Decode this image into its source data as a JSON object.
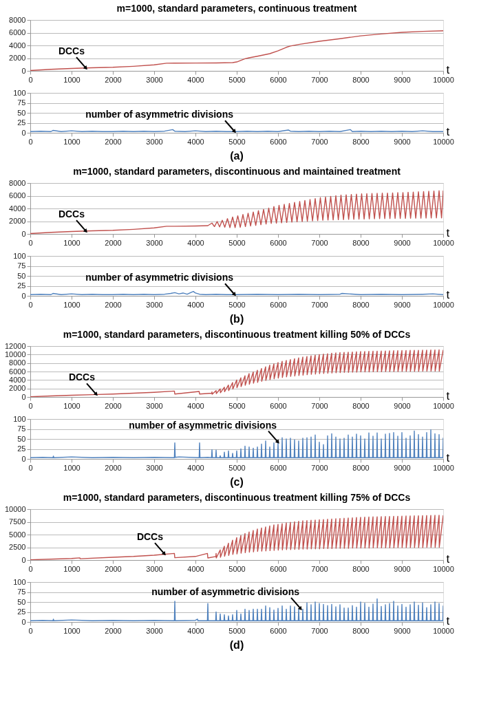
{
  "chart_data": [
    {
      "type": "line",
      "title": "m=1000, standard parameters, continuous treatment",
      "xlabel": "t",
      "xlim": [
        0,
        10000
      ],
      "xticks": [
        0,
        1000,
        2000,
        3000,
        4000,
        5000,
        6000,
        7000,
        8000,
        9000,
        10000
      ],
      "ylim": [
        0,
        8000
      ],
      "yticks": [
        0,
        2000,
        4000,
        6000,
        8000
      ],
      "grid": "y",
      "annotations": [
        {
          "text": "DCCs",
          "x": 1350,
          "y": 420
        }
      ],
      "series": [
        {
          "color": "#c0504d",
          "x": [
            0,
            500,
            1000,
            1500,
            2000,
            2500,
            3000,
            3300,
            3500,
            4000,
            4500,
            4900,
            5000,
            5200,
            5300,
            5500,
            5800,
            6000,
            6200,
            6300,
            6500,
            7000,
            7500,
            8000,
            8500,
            9000,
            9500,
            10000
          ],
          "values": [
            50,
            250,
            380,
            480,
            560,
            720,
            950,
            1200,
            1220,
            1230,
            1250,
            1300,
            1400,
            1900,
            2050,
            2300,
            2700,
            3150,
            3700,
            3900,
            4150,
            4650,
            5050,
            5500,
            5800,
            6050,
            6200,
            6300
          ]
        }
      ]
    },
    {
      "type": "line",
      "xlabel": "t",
      "xlim": [
        0,
        10000
      ],
      "xticks": [
        0,
        1000,
        2000,
        3000,
        4000,
        5000,
        6000,
        7000,
        8000,
        9000,
        10000
      ],
      "ylim": [
        0,
        100
      ],
      "yticks": [
        0,
        25,
        50,
        75,
        100
      ],
      "grid": "y",
      "annotations": [
        {
          "text": "number of asymmetric divisions",
          "x": 4950,
          "y": 3
        },
        "(a)"
      ],
      "series": [
        {
          "color": "#4f81bd",
          "x": [
            0,
            250,
            500,
            550,
            750,
            1000,
            1250,
            1500,
            1750,
            2000,
            2250,
            2500,
            2750,
            3000,
            3250,
            3450,
            3500,
            3750,
            4000,
            4250,
            4500,
            4750,
            5000,
            5250,
            5500,
            5750,
            6000,
            6250,
            6300,
            6500,
            6750,
            7000,
            7250,
            7500,
            7750,
            7800,
            8000,
            8250,
            8500,
            8750,
            9000,
            9250,
            9500,
            9750,
            10000
          ],
          "values": [
            3,
            4,
            3,
            6,
            3,
            5,
            3,
            4,
            3,
            3,
            4,
            3,
            4,
            3,
            4,
            8,
            4,
            3,
            5,
            3,
            4,
            3,
            3,
            4,
            3,
            4,
            3,
            7,
            4,
            3,
            4,
            3,
            4,
            3,
            8,
            3,
            4,
            3,
            4,
            3,
            4,
            3,
            5,
            3,
            3
          ]
        }
      ]
    },
    {
      "type": "line",
      "title": "m=1000, standard parameters, discontinuous and maintained treatment",
      "xlabel": "t",
      "xlim": [
        0,
        10000
      ],
      "xticks": [
        0,
        1000,
        2000,
        3000,
        4000,
        5000,
        6000,
        7000,
        8000,
        9000,
        10000
      ],
      "ylim": [
        0,
        8000
      ],
      "yticks": [
        0,
        2000,
        4000,
        6000,
        8000
      ],
      "grid": "y",
      "annotations": [
        {
          "text": "DCCs",
          "x": 1350,
          "y": 420
        }
      ],
      "series": [
        {
          "color": "#c0504d",
          "x": [
            0,
            500,
            1000,
            1500,
            2000,
            2500,
            3000,
            3300,
            3500,
            4000,
            4300,
            4400,
            4460,
            4525,
            4585,
            4650,
            4710,
            4775,
            4835,
            4900,
            4960,
            5025,
            5085,
            5150,
            5210,
            5275,
            5335,
            5400,
            5460,
            5525,
            5585,
            5650,
            5710,
            5775,
            5835,
            5900,
            5960,
            6025,
            6085,
            6150,
            6210,
            6275,
            6335,
            6400,
            6460,
            6525,
            6585,
            6650,
            6710,
            6775,
            6835,
            6900,
            6960,
            7025,
            7085,
            7150,
            7210,
            7275,
            7335,
            7400,
            7460,
            7525,
            7585,
            7650,
            7710,
            7775,
            7835,
            7900,
            7960,
            8025,
            8085,
            8150,
            8210,
            8275,
            8335,
            8400,
            8460,
            8525,
            8585,
            8650,
            8710,
            8775,
            8835,
            8900,
            8960,
            9025,
            9085,
            9150,
            9210,
            9275,
            9335,
            9400,
            9460,
            9525,
            9585,
            9650,
            9710,
            9775,
            9835,
            9900,
            9960,
            10000
          ],
          "values": [
            50,
            250,
            380,
            480,
            560,
            720,
            950,
            1200,
            1200,
            1250,
            1300,
            1700,
            1150,
            1950,
            1100,
            2150,
            1050,
            2400,
            1000,
            2650,
            1000,
            2850,
            1050,
            3050,
            1150,
            3250,
            1250,
            3450,
            1350,
            3650,
            1450,
            3850,
            1550,
            4050,
            1650,
            4300,
            1700,
            4500,
            1750,
            4650,
            1800,
            4800,
            1850,
            4950,
            1900,
            5100,
            1950,
            5250,
            2000,
            5400,
            2050,
            5550,
            2100,
            5700,
            2150,
            5800,
            2180,
            5900,
            2200,
            6000,
            2230,
            6100,
            2250,
            6150,
            2280,
            6200,
            2300,
            6250,
            2320,
            6300,
            2340,
            6320,
            2360,
            6350,
            2380,
            6380,
            2400,
            6400,
            2410,
            6420,
            2420,
            6450,
            2430,
            6480,
            2440,
            6500,
            2450,
            6550,
            2460,
            6580,
            2470,
            6620,
            2480,
            6660,
            2490,
            6700,
            2500,
            6740,
            2510,
            6780,
            2520,
            6800
          ]
        }
      ]
    },
    {
      "type": "line",
      "xlabel": "t",
      "xlim": [
        0,
        10000
      ],
      "xticks": [
        0,
        1000,
        2000,
        3000,
        4000,
        5000,
        6000,
        7000,
        8000,
        9000,
        10000
      ],
      "ylim": [
        0,
        100
      ],
      "yticks": [
        0,
        25,
        50,
        75,
        100
      ],
      "grid": "y",
      "annotations": [
        {
          "text": "number of asymmetric divisions",
          "x": 4950,
          "y": 3
        },
        "(b)"
      ],
      "series": [
        {
          "color": "#4f81bd",
          "x": [
            0,
            250,
            500,
            550,
            750,
            1000,
            1250,
            1500,
            1750,
            2000,
            2250,
            2500,
            2750,
            3000,
            3250,
            3400,
            3500,
            3600,
            3700,
            3800,
            3900,
            3950,
            4000,
            4100,
            4250,
            4500,
            4750,
            5000,
            5500,
            6000,
            6500,
            7000,
            7500,
            7550,
            8000,
            8500,
            9000,
            9500,
            9750,
            10000
          ],
          "values": [
            3,
            4,
            3,
            6,
            3,
            5,
            3,
            4,
            3,
            3,
            4,
            3,
            4,
            3,
            4,
            6,
            8,
            5,
            7,
            4,
            9,
            11,
            7,
            4,
            3,
            4,
            3,
            3,
            4,
            3,
            4,
            3,
            4,
            6,
            3,
            4,
            3,
            4,
            5,
            3
          ]
        }
      ]
    },
    {
      "type": "line",
      "title": "m=1000, standard parameters, discontinuous treatment killing 50% of DCCs",
      "xlabel": "t",
      "xlim": [
        0,
        10000
      ],
      "xticks": [
        0,
        1000,
        2000,
        3000,
        4000,
        5000,
        6000,
        7000,
        8000,
        9000,
        10000
      ],
      "ylim": [
        0,
        12000
      ],
      "yticks": [
        0,
        2000,
        4000,
        6000,
        8000,
        10000,
        12000
      ],
      "grid": "y",
      "annotations": [
        {
          "text": "DCCs",
          "x": 1600,
          "y": 600
        }
      ],
      "series": [
        {
          "color": "#c0504d",
          "x": [
            0,
            500,
            1000,
            1500,
            2000,
            2500,
            3000,
            3490,
            3500,
            4090,
            4100,
            4395,
            4400,
            4405,
            4500,
            4505,
            4600,
            4605,
            4700,
            4705,
            4800,
            4805,
            4900,
            4905,
            5000,
            5005,
            5100,
            5105,
            5200,
            5205,
            5300,
            5305,
            5400,
            5405,
            5500,
            5505,
            5600,
            5605,
            5700,
            5705,
            5800,
            5805,
            5900,
            5905,
            6000,
            6005,
            6100,
            6105,
            6200,
            6205,
            6300,
            6305,
            6400,
            6405,
            6500,
            6505,
            6600,
            6605,
            6700,
            6705,
            6800,
            6805,
            6900,
            6905,
            7000,
            7005,
            7100,
            7105,
            7200,
            7205,
            7300,
            7305,
            7400,
            7405,
            7500,
            7505,
            7600,
            7605,
            7700,
            7705,
            7800,
            7805,
            7900,
            7905,
            8000,
            8005,
            8100,
            8105,
            8200,
            8205,
            8300,
            8305,
            8400,
            8405,
            8500,
            8505,
            8600,
            8605,
            8700,
            8705,
            8800,
            8805,
            8900,
            8905,
            9000,
            9005,
            9100,
            9105,
            9200,
            9205,
            9300,
            9305,
            9400,
            9405,
            9500,
            9505,
            9600,
            9605,
            9700,
            9705,
            9800,
            9805,
            9900,
            9905,
            10000
          ],
          "values": [
            50,
            250,
            400,
            550,
            700,
            900,
            1100,
            1400,
            700,
            1300,
            700,
            900,
            1200,
            650,
            1500,
            800,
            1900,
            1000,
            2300,
            1250,
            2800,
            1500,
            3400,
            1850,
            4000,
            2200,
            4500,
            2450,
            5000,
            2750,
            5500,
            3000,
            5900,
            3250,
            6300,
            3450,
            6700,
            3700,
            7100,
            3900,
            7500,
            4100,
            7800,
            4300,
            8100,
            4450,
            8400,
            4600,
            8600,
            4750,
            8800,
            4850,
            9000,
            4950,
            9200,
            5050,
            9400,
            5150,
            9550,
            5250,
            9700,
            5350,
            9850,
            5400,
            10000,
            5500,
            10100,
            5550,
            10200,
            5600,
            10300,
            5650,
            10400,
            5700,
            10450,
            5750,
            10500,
            5800,
            10550,
            5800,
            10600,
            5850,
            10650,
            5850,
            10700,
            5900,
            10720,
            5900,
            10750,
            5900,
            10780,
            5950,
            10800,
            5950,
            10820,
            5950,
            10850,
            6000,
            10870,
            6000,
            10900,
            6000,
            10920,
            6000,
            10940,
            6050,
            10960,
            6050,
            10980,
            6050,
            11000,
            6050,
            11000,
            6050,
            11020,
            6100,
            11040,
            6100,
            11060,
            6100,
            11080,
            6100,
            11100,
            6100,
            11100
          ]
        }
      ]
    },
    {
      "type": "line",
      "xlabel": "t",
      "xlim": [
        0,
        10000
      ],
      "xticks": [
        0,
        1000,
        2000,
        3000,
        4000,
        5000,
        6000,
        7000,
        8000,
        9000,
        10000
      ],
      "ylim": [
        0,
        100
      ],
      "yticks": [
        0,
        25,
        50,
        75,
        100
      ],
      "grid": "y",
      "annotations": [
        {
          "text": "number of asymmetric divisions",
          "x": 6000,
          "y": 42
        },
        "(c)"
      ],
      "series": [
        {
          "color": "#4f81bd",
          "x": [
            0,
            300,
            550,
            560,
            570,
            1000,
            1500,
            2000,
            2500,
            3000,
            3490,
            3500,
            3510,
            3600,
            4090,
            4100,
            4110,
            4300,
            4390,
            4400,
            4410,
            4490,
            4500,
            4510,
            4590,
            4600,
            4610,
            4690,
            4700,
            4710,
            4790,
            4800,
            4810,
            4890,
            4900,
            4910,
            4990,
            5000,
            5010,
            5090,
            5100,
            5110,
            5190,
            5200,
            5210,
            5290,
            5300,
            5310,
            5390,
            5400,
            5410,
            5490,
            5500,
            5510,
            5590,
            5600,
            5610,
            5690,
            5700,
            5710,
            5790,
            5800,
            5810,
            5890,
            5900,
            5910,
            5990,
            6000,
            6010,
            6090,
            6100,
            6110,
            6190,
            6200,
            6210,
            6290,
            6300,
            6310,
            6390,
            6400,
            6410,
            6490,
            6500,
            6510,
            6590,
            6600,
            6610,
            6690,
            6700,
            6710,
            6790,
            6800,
            6810,
            6890,
            6900,
            6910,
            6990,
            7000,
            7010,
            7090,
            7100,
            7110,
            7190,
            7200,
            7210,
            7290,
            7300,
            7310,
            7390,
            7400,
            7410,
            7490,
            7500,
            7510,
            7590,
            7600,
            7610,
            7690,
            7700,
            7710,
            7790,
            7800,
            7810,
            7890,
            7900,
            7910,
            7990,
            8000,
            8010,
            8090,
            8100,
            8110,
            8190,
            8200,
            8210,
            8290,
            8300,
            8310,
            8390,
            8400,
            8410,
            8490,
            8500,
            8510,
            8590,
            8600,
            8610,
            8690,
            8700,
            8710,
            8790,
            8800,
            8810,
            8890,
            8900,
            8910,
            8990,
            9000,
            9010,
            9090,
            9100,
            9110,
            9190,
            9200,
            9210,
            9290,
            9300,
            9310,
            9390,
            9400,
            9410,
            9490,
            9500,
            9510,
            9590,
            9600,
            9610,
            9690,
            9700,
            9710,
            9790,
            9800,
            9810,
            9890,
            9900,
            9910,
            9990,
            10000
          ],
          "values": [
            3,
            4,
            3,
            7,
            3,
            5,
            3,
            4,
            3,
            4,
            3,
            40,
            4,
            5,
            3,
            40,
            3,
            4,
            3,
            23,
            3,
            3,
            22,
            3,
            3,
            8,
            3,
            3,
            17,
            3,
            3,
            20,
            3,
            3,
            14,
            3,
            3,
            20,
            3,
            3,
            25,
            3,
            3,
            32,
            3,
            3,
            30,
            3,
            3,
            27,
            3,
            3,
            30,
            3,
            3,
            37,
            3,
            3,
            45,
            3,
            3,
            30,
            3,
            3,
            40,
            3,
            3,
            40,
            3,
            3,
            53,
            3,
            3,
            50,
            3,
            3,
            52,
            3,
            3,
            48,
            3,
            3,
            45,
            3,
            3,
            52,
            3,
            3,
            53,
            3,
            3,
            55,
            3,
            3,
            60,
            3,
            3,
            42,
            3,
            3,
            36,
            3,
            3,
            58,
            3,
            3,
            63,
            3,
            3,
            55,
            3,
            3,
            50,
            3,
            3,
            52,
            3,
            3,
            60,
            3,
            3,
            55,
            3,
            3,
            62,
            3,
            3,
            58,
            3,
            3,
            50,
            3,
            3,
            65,
            3,
            3,
            57,
            3,
            3,
            65,
            3,
            3,
            50,
            3,
            3,
            62,
            3,
            3,
            64,
            3,
            3,
            66,
            3,
            3,
            57,
            3,
            3,
            66,
            3,
            3,
            52,
            3,
            3,
            58,
            3,
            3,
            70,
            3,
            3,
            61,
            3,
            3,
            55,
            3,
            3,
            66,
            3,
            3,
            73,
            3,
            3,
            63,
            3,
            3,
            61,
            3,
            3,
            53
          ]
        }
      ]
    },
    {
      "type": "line",
      "title": "m=1000, standard parameters, discontinuous treatment killing 75% of DCCs",
      "xlabel": "t",
      "xlim": [
        0,
        10000
      ],
      "xticks": [
        0,
        1000,
        2000,
        3000,
        4000,
        5000,
        6000,
        7000,
        8000,
        9000,
        10000
      ],
      "ylim": [
        0,
        10000
      ],
      "yticks": [
        0,
        2500,
        5000,
        7500,
        10000
      ],
      "grid": "y",
      "annotations": [
        {
          "text": "DCCs",
          "x": 3250,
          "y": 1200
        }
      ],
      "series": [
        {
          "color": "#c0504d",
          "x": [
            0,
            1000,
            1200,
            1210,
            2000,
            2500,
            3000,
            3490,
            3500,
            4000,
            4290,
            4300,
            4495,
            4500,
            4505,
            4600,
            4605,
            4700,
            4705,
            4800,
            4805,
            4900,
            4905,
            5000,
            5005,
            5100,
            5105,
            5200,
            5205,
            5300,
            5305,
            5400,
            5405,
            5500,
            5505,
            5600,
            5605,
            5700,
            5705,
            5800,
            5805,
            5900,
            5905,
            6000,
            6005,
            6100,
            6105,
            6200,
            6205,
            6300,
            6305,
            6400,
            6405,
            6500,
            6505,
            6600,
            6605,
            6700,
            6705,
            6800,
            6805,
            6900,
            6905,
            7000,
            7005,
            7100,
            7105,
            7200,
            7205,
            7300,
            7305,
            7400,
            7405,
            7500,
            7505,
            7600,
            7605,
            7700,
            7705,
            7800,
            7805,
            7900,
            7905,
            8000,
            8005,
            8100,
            8105,
            8200,
            8205,
            8300,
            8305,
            8400,
            8405,
            8500,
            8505,
            8600,
            8605,
            8700,
            8705,
            8800,
            8805,
            8900,
            8905,
            9000,
            9005,
            9100,
            9105,
            9200,
            9205,
            9300,
            9305,
            9400,
            9405,
            9500,
            9505,
            9600,
            9605,
            9700,
            9705,
            9800,
            9805,
            9900,
            9905,
            10000
          ],
          "values": [
            50,
            300,
            420,
            250,
            550,
            700,
            950,
            1300,
            450,
            700,
            1300,
            400,
            700,
            1300,
            400,
            2000,
            550,
            2700,
            750,
            3300,
            900,
            3900,
            1100,
            4400,
            1200,
            4800,
            1350,
            5200,
            1450,
            5500,
            1550,
            5800,
            1600,
            6100,
            1700,
            6300,
            1750,
            6500,
            1800,
            6700,
            1850,
            6900,
            1900,
            7000,
            1950,
            7150,
            2000,
            7300,
            2050,
            7400,
            2050,
            7500,
            2100,
            7600,
            2100,
            7700,
            2150,
            7750,
            2150,
            7800,
            2200,
            7850,
            2200,
            7900,
            2200,
            7950,
            2250,
            8000,
            2250,
            8050,
            2250,
            8100,
            2300,
            8150,
            2300,
            8200,
            2300,
            8250,
            2300,
            8300,
            2350,
            8350,
            2350,
            8400,
            2350,
            8420,
            2350,
            8450,
            2350,
            8480,
            2400,
            8500,
            2400,
            8520,
            2400,
            8540,
            2400,
            8560,
            2400,
            8580,
            2400,
            8600,
            2450,
            8620,
            2450,
            8640,
            2450,
            8660,
            2450,
            8680,
            2450,
            8700,
            2450,
            8720,
            2450,
            8740,
            2500,
            8760,
            2500,
            8780,
            2500,
            8800,
            2500,
            8800
          ]
        }
      ]
    },
    {
      "type": "line",
      "xlabel": "t",
      "xlim": [
        0,
        10000
      ],
      "xticks": [
        0,
        1000,
        2000,
        3000,
        4000,
        5000,
        6000,
        7000,
        8000,
        9000,
        10000
      ],
      "ylim": [
        0,
        100
      ],
      "yticks": [
        0,
        25,
        50,
        75,
        100
      ],
      "grid": "y",
      "annotations": [
        {
          "text": "number of asymmetric divisions",
          "x": 6550,
          "y": 33
        },
        "(d)"
      ],
      "series": [
        {
          "color": "#4f81bd",
          "x": [
            0,
            300,
            550,
            560,
            570,
            1000,
            1500,
            2000,
            2500,
            3000,
            3490,
            3500,
            3510,
            4000,
            4050,
            4060,
            4290,
            4300,
            4310,
            4390,
            4490,
            4500,
            4510,
            4590,
            4600,
            4610,
            4690,
            4700,
            4710,
            4790,
            4800,
            4810,
            4890,
            4900,
            4910,
            4990,
            5000,
            5010,
            5090,
            5100,
            5110,
            5190,
            5200,
            5210,
            5290,
            5300,
            5310,
            5390,
            5400,
            5410,
            5490,
            5500,
            5510,
            5590,
            5600,
            5610,
            5690,
            5700,
            5710,
            5790,
            5800,
            5810,
            5890,
            5900,
            5910,
            5990,
            6000,
            6010,
            6090,
            6100,
            6110,
            6190,
            6200,
            6210,
            6290,
            6300,
            6310,
            6390,
            6400,
            6410,
            6490,
            6500,
            6510,
            6590,
            6600,
            6610,
            6690,
            6700,
            6710,
            6790,
            6800,
            6810,
            6890,
            6900,
            6910,
            6990,
            7000,
            7010,
            7090,
            7100,
            7110,
            7190,
            7200,
            7210,
            7290,
            7300,
            7310,
            7390,
            7400,
            7410,
            7490,
            7500,
            7510,
            7590,
            7600,
            7610,
            7690,
            7700,
            7710,
            7790,
            7800,
            7810,
            7890,
            7900,
            7910,
            7990,
            8000,
            8010,
            8090,
            8100,
            8110,
            8190,
            8200,
            8210,
            8290,
            8300,
            8310,
            8390,
            8400,
            8410,
            8490,
            8500,
            8510,
            8590,
            8600,
            8610,
            8690,
            8700,
            8710,
            8790,
            8800,
            8810,
            8890,
            8900,
            8910,
            8990,
            9000,
            9010,
            9090,
            9100,
            9110,
            9190,
            9200,
            9210,
            9290,
            9300,
            9310,
            9390,
            9400,
            9410,
            9490,
            9500,
            9510,
            9590,
            9600,
            9610,
            9690,
            9700,
            9710,
            9790,
            9800,
            9810,
            9890,
            9900,
            9910,
            9990,
            10000
          ],
          "values": [
            3,
            4,
            3,
            7,
            3,
            5,
            3,
            4,
            3,
            4,
            3,
            52,
            3,
            4,
            7,
            3,
            3,
            46,
            3,
            3,
            3,
            25,
            3,
            3,
            20,
            3,
            3,
            18,
            3,
            3,
            15,
            3,
            3,
            18,
            3,
            3,
            29,
            3,
            3,
            20,
            3,
            3,
            32,
            3,
            3,
            29,
            3,
            3,
            32,
            3,
            3,
            32,
            3,
            3,
            32,
            3,
            3,
            40,
            3,
            3,
            36,
            3,
            3,
            30,
            3,
            3,
            34,
            3,
            3,
            40,
            3,
            3,
            32,
            3,
            3,
            40,
            3,
            3,
            38,
            3,
            3,
            32,
            3,
            3,
            32,
            3,
            3,
            48,
            3,
            3,
            43,
            3,
            3,
            50,
            3,
            3,
            46,
            3,
            3,
            44,
            3,
            3,
            41,
            3,
            3,
            44,
            3,
            3,
            38,
            3,
            3,
            43,
            3,
            3,
            35,
            3,
            3,
            35,
            3,
            3,
            41,
            3,
            3,
            37,
            3,
            3,
            50,
            3,
            3,
            47,
            3,
            3,
            37,
            3,
            3,
            45,
            3,
            3,
            58,
            3,
            3,
            39,
            3,
            3,
            43,
            3,
            3,
            46,
            3,
            3,
            52,
            3,
            3,
            40,
            3,
            3,
            44,
            3,
            3,
            37,
            3,
            3,
            43,
            3,
            3,
            50,
            3,
            3,
            42,
            3,
            3,
            48,
            3,
            3,
            36,
            3,
            3,
            43,
            3,
            3,
            50,
            3,
            3,
            46,
            3,
            3,
            41
          ]
        }
      ]
    }
  ]
}
